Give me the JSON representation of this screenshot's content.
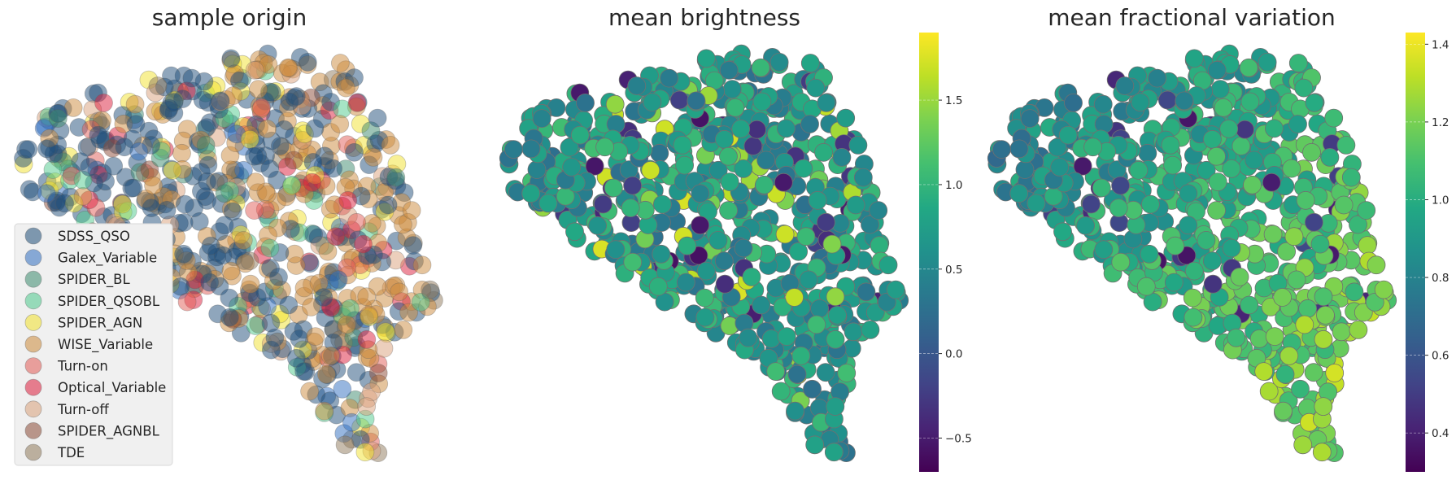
{
  "chart_data": [
    {
      "type": "scatter",
      "title": "sample origin",
      "grid": false,
      "legend_position": "lower-left",
      "categories": [
        "SDSS_QSO",
        "Galex_Variable",
        "SPIDER_BL",
        "SPIDER_QSOBL",
        "SPIDER_AGN",
        "WISE_Variable",
        "Turn-on",
        "Optical_Variable",
        "Turn-off",
        "SPIDER_AGNBL",
        "TDE"
      ],
      "colors": [
        "#1f4e79",
        "#2f6dbf",
        "#3b8a6e",
        "#4dc98c",
        "#f2e12b",
        "#cc8a3b",
        "#e25b55",
        "#dc1e3c",
        "#d9a07a",
        "#8b4a36",
        "#8f7a5b"
      ]
    },
    {
      "type": "scatter",
      "title": "mean brightness",
      "grid": false,
      "colormap": "viridis",
      "colorbar": {
        "ticks": [
          "−0.5",
          "0.0",
          "0.5",
          "1.0",
          "1.5"
        ],
        "tick_values": [
          -0.5,
          0.0,
          0.5,
          1.0,
          1.5
        ],
        "range": [
          -0.7,
          1.9
        ]
      }
    },
    {
      "type": "scatter",
      "title": "mean fractional variation",
      "grid": false,
      "colormap": "viridis",
      "colorbar": {
        "ticks": [
          "0.4",
          "0.6",
          "0.8",
          "1.0",
          "1.2",
          "1.4"
        ],
        "tick_values": [
          0.4,
          0.6,
          0.8,
          1.0,
          1.2,
          1.4
        ],
        "range": [
          0.3,
          1.43
        ]
      }
    }
  ]
}
